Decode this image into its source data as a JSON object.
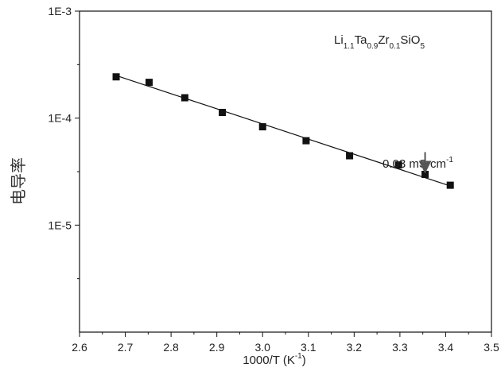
{
  "chart_data": {
    "type": "scatter",
    "xlabel": "1000/T (K",
    "xlabel_sup": "-1",
    "xlabel_close": ")",
    "ylabel": "电导率",
    "xlim": [
      2.6,
      3.5
    ],
    "xticks": [
      2.6,
      2.7,
      2.8,
      2.9,
      3.0,
      3.1,
      3.2,
      3.3,
      3.4,
      3.5
    ],
    "x_tick_labels": [
      "2.6",
      "2.7",
      "2.8",
      "2.9",
      "3.0",
      "3.1",
      "3.2",
      "3.3",
      "3.4",
      "3.5"
    ],
    "ylim": [
      1e-06,
      0.001
    ],
    "yscale": "log",
    "yticks": [
      0.001,
      0.0001,
      1e-05
    ],
    "y_tick_labels": [
      "1E-3",
      "1E-4",
      "1E-5"
    ],
    "grid": false,
    "legend": {
      "placement": "top-right",
      "parts": [
        {
          "text": "Li",
          "script": "normal"
        },
        {
          "text": "1.1",
          "script": "sub"
        },
        {
          "text": "Ta",
          "script": "normal"
        },
        {
          "text": "0.9",
          "script": "sub"
        },
        {
          "text": "Zr",
          "script": "normal"
        },
        {
          "text": "0.1",
          "script": "sub"
        },
        {
          "text": "SiO",
          "script": "normal"
        },
        {
          "text": "5",
          "script": "sub"
        }
      ]
    },
    "series": [
      {
        "marker": "square",
        "color": "#111111",
        "x": [
          2.68,
          2.752,
          2.83,
          2.912,
          3.0,
          3.095,
          3.19,
          3.297,
          3.355,
          3.41
        ],
        "y": [
          0.000243,
          0.000216,
          0.000155,
          0.000113,
          8.3e-05,
          6.15e-05,
          4.45e-05,
          3.65e-05,
          2.98e-05,
          2.36e-05
        ]
      }
    ],
    "fit_line": {
      "color": "#111111",
      "x": [
        2.68,
        3.41
      ],
      "y": [
        0.00025,
        2.32e-05
      ]
    },
    "annotation": {
      "text": "0.03 mS cm",
      "sup": "-1",
      "target_x": 3.355,
      "target_y": 2.98e-05
    }
  }
}
